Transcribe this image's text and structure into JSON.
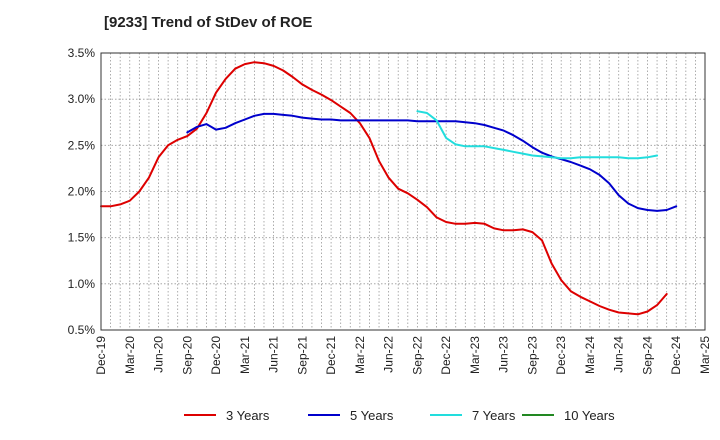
{
  "chart_data": {
    "type": "line",
    "title": "[9233]  Trend of StDev of ROE",
    "xlabel": "",
    "ylabel": "",
    "ylim": [
      0.5,
      3.5
    ],
    "yticks": [
      "0.5%",
      "1.0%",
      "1.5%",
      "2.0%",
      "2.5%",
      "3.0%",
      "3.5%"
    ],
    "x_labels": [
      "Dec-19",
      "Mar-20",
      "Jun-20",
      "Sep-20",
      "Dec-20",
      "Mar-21",
      "Jun-21",
      "Sep-21",
      "Dec-21",
      "Mar-22",
      "Jun-22",
      "Sep-22",
      "Dec-22",
      "Mar-23",
      "Jun-23",
      "Sep-23",
      "Dec-23",
      "Mar-24",
      "Jun-24",
      "Sep-24",
      "Dec-24",
      "Mar-25"
    ],
    "grid": true,
    "legend_position": "bottom",
    "series": [
      {
        "name": "3 Years",
        "color": "#dd0000",
        "start_index": 0,
        "values": [
          1.84,
          1.84,
          1.86,
          1.9,
          2.0,
          2.15,
          2.37,
          2.5,
          2.56,
          2.6,
          2.68,
          2.85,
          3.07,
          3.22,
          3.33,
          3.38,
          3.4,
          3.39,
          3.36,
          3.31,
          3.24,
          3.16,
          3.1,
          3.05,
          2.99,
          2.92,
          2.85,
          2.74,
          2.58,
          2.33,
          2.15,
          2.03,
          1.98,
          1.91,
          1.83,
          1.72,
          1.67,
          1.65,
          1.65,
          1.66,
          1.65,
          1.6,
          1.58,
          1.58,
          1.59,
          1.56,
          1.47,
          1.22,
          1.04,
          0.92,
          0.86,
          0.81,
          0.76,
          0.72,
          0.69,
          0.68,
          0.67,
          0.7,
          0.77,
          0.89
        ]
      },
      {
        "name": "5 Years",
        "color": "#0000cc",
        "start_index": 9,
        "values": [
          2.64,
          2.7,
          2.73,
          2.67,
          2.69,
          2.74,
          2.78,
          2.82,
          2.84,
          2.84,
          2.83,
          2.82,
          2.8,
          2.79,
          2.78,
          2.78,
          2.77,
          2.77,
          2.77,
          2.77,
          2.77,
          2.77,
          2.77,
          2.77,
          2.76,
          2.76,
          2.76,
          2.76,
          2.76,
          2.75,
          2.74,
          2.72,
          2.69,
          2.66,
          2.61,
          2.55,
          2.48,
          2.42,
          2.38,
          2.35,
          2.32,
          2.28,
          2.24,
          2.18,
          2.09,
          1.96,
          1.87,
          1.82,
          1.8,
          1.79,
          1.8,
          1.84
        ]
      },
      {
        "name": "7 Years",
        "color": "#22dddd",
        "start_index": 33,
        "values": [
          2.87,
          2.85,
          2.77,
          2.58,
          2.51,
          2.49,
          2.49,
          2.49,
          2.47,
          2.45,
          2.43,
          2.41,
          2.39,
          2.38,
          2.37,
          2.36,
          2.36,
          2.37,
          2.37,
          2.37,
          2.37,
          2.37,
          2.36,
          2.36,
          2.37,
          2.39
        ]
      },
      {
        "name": "10 Years",
        "color": "#228822",
        "start_index": 0,
        "values": []
      }
    ]
  }
}
